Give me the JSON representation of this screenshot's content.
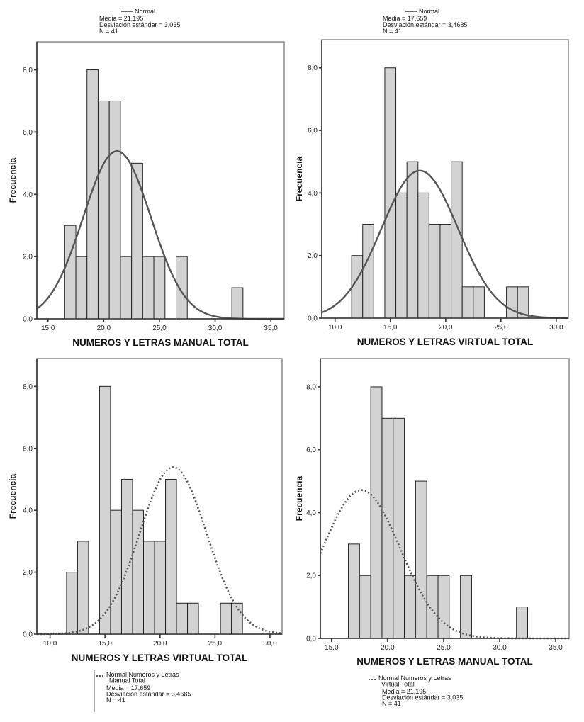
{
  "chart_data": [
    {
      "id": "manual-total",
      "type": "bar",
      "subtype": "histogram",
      "xlabel": "NUMEROS Y LETRAS MANUAL TOTAL",
      "ylabel": "Frecuencia",
      "xlim": [
        14.0,
        36.2
      ],
      "ylim": [
        0,
        8.9
      ],
      "xticks": [
        15,
        20,
        25,
        30,
        35
      ],
      "xtick_labels": [
        "15,0",
        "20,0",
        "25,0",
        "30,0",
        "35,0"
      ],
      "yticks": [
        0,
        2,
        4,
        6,
        8
      ],
      "ytick_labels": [
        "0,0",
        "2,0",
        "4,0",
        "6,0",
        "8,0"
      ],
      "bin_width": 1,
      "bins": [
        17,
        18,
        19,
        20,
        21,
        22,
        23,
        24,
        25,
        27,
        32
      ],
      "values": [
        3,
        2,
        8,
        7,
        7,
        2,
        5,
        2,
        2,
        2,
        1
      ],
      "curve": {
        "type": "normal",
        "style": "solid",
        "mean": 21.195,
        "sd": 3.035,
        "n": 41
      },
      "legend": {
        "placement": "top",
        "entry": "Normal",
        "lines": [
          "Media = 21,195",
          "Desviación estándar = 3,035",
          "N = 41"
        ]
      }
    },
    {
      "id": "virtual-total",
      "type": "bar",
      "subtype": "histogram",
      "xlabel": "NUMEROS Y LETRAS VIRTUAL TOTAL",
      "ylabel": "Frecuencia",
      "xlim": [
        8.8,
        31.1
      ],
      "ylim": [
        0,
        8.9
      ],
      "xticks": [
        10,
        15,
        20,
        25,
        30
      ],
      "xtick_labels": [
        "10,0",
        "15,0",
        "20,0",
        "25,0",
        "30,0"
      ],
      "yticks": [
        0,
        2,
        4,
        6,
        8
      ],
      "ytick_labels": [
        "0,0",
        "2,0",
        "4,0",
        "6,0",
        "8,0"
      ],
      "bin_width": 1,
      "bins": [
        12,
        13,
        15,
        16,
        17,
        18,
        19,
        20,
        21,
        22,
        23,
        26,
        27
      ],
      "values": [
        2,
        3,
        8,
        4,
        5,
        4,
        3,
        3,
        5,
        1,
        1,
        1,
        1
      ],
      "curve": {
        "type": "normal",
        "style": "solid",
        "mean": 17.659,
        "sd": 3.4685,
        "n": 41
      },
      "legend": {
        "placement": "top",
        "entry": "Normal",
        "lines": [
          "Media = 17,659",
          "Desviación estándar = 3,4685",
          "N = 41"
        ]
      }
    },
    {
      "id": "virtual-total-vs-manual-normal",
      "type": "bar",
      "subtype": "histogram",
      "xlabel": "NUMEROS Y LETRAS VIRTUAL TOTAL",
      "ylabel": "Frecuencia",
      "xlim": [
        8.8,
        31.1
      ],
      "ylim": [
        0,
        8.9
      ],
      "xticks": [
        10,
        15,
        20,
        25,
        30
      ],
      "xtick_labels": [
        "10,0",
        "15,0",
        "20,0",
        "25,0",
        "30,0"
      ],
      "yticks": [
        0,
        2,
        4,
        6,
        8
      ],
      "ytick_labels": [
        "0,0",
        "2,0",
        "4,0",
        "6,0",
        "8,0"
      ],
      "bin_width": 1,
      "bins": [
        12,
        13,
        15,
        16,
        17,
        18,
        19,
        20,
        21,
        22,
        23,
        26,
        27
      ],
      "values": [
        2,
        3,
        8,
        4,
        5,
        4,
        3,
        3,
        5,
        1,
        1,
        1,
        1
      ],
      "curve": {
        "type": "normal",
        "style": "dotted",
        "mean": 21.195,
        "sd": 3.035,
        "n": 41
      },
      "legend": {
        "placement": "bottom",
        "entry": "Normal Numeros y Letras Manual Total",
        "entry_lines": [
          "Normal Numeros y Letras",
          "Manual Total"
        ],
        "lines": [
          "Media = 17,659",
          "Desviación estándar = 3,4685",
          "N = 41"
        ]
      }
    },
    {
      "id": "manual-total-vs-virtual-normal",
      "type": "bar",
      "subtype": "histogram",
      "xlabel": "NUMEROS Y LETRAS MANUAL TOTAL",
      "ylabel": "Frecuencia",
      "xlim": [
        14.0,
        36.2
      ],
      "ylim": [
        0,
        8.9
      ],
      "xticks": [
        15,
        20,
        25,
        30,
        35
      ],
      "xtick_labels": [
        "15,0",
        "20,0",
        "25,0",
        "30,0",
        "35,0"
      ],
      "yticks": [
        0,
        2,
        4,
        6,
        8
      ],
      "ytick_labels": [
        "0,0",
        "2,0",
        "4,0",
        "6,0",
        "8,0"
      ],
      "bin_width": 1,
      "bins": [
        17,
        18,
        19,
        20,
        21,
        22,
        23,
        24,
        25,
        27,
        32
      ],
      "values": [
        3,
        2,
        8,
        7,
        7,
        2,
        5,
        2,
        2,
        2,
        1
      ],
      "curve": {
        "type": "normal",
        "style": "dotted",
        "mean": 17.659,
        "sd": 3.4685,
        "n": 41
      },
      "legend": {
        "placement": "bottom",
        "entry": "Normal Numeros y Letras Virtual Total",
        "entry_lines": [
          "Normal Numeros y Letras",
          "Virtual Total"
        ],
        "lines": [
          "Media = 21,195",
          "Desviación estándar = 3,035",
          "N = 41"
        ]
      }
    }
  ]
}
